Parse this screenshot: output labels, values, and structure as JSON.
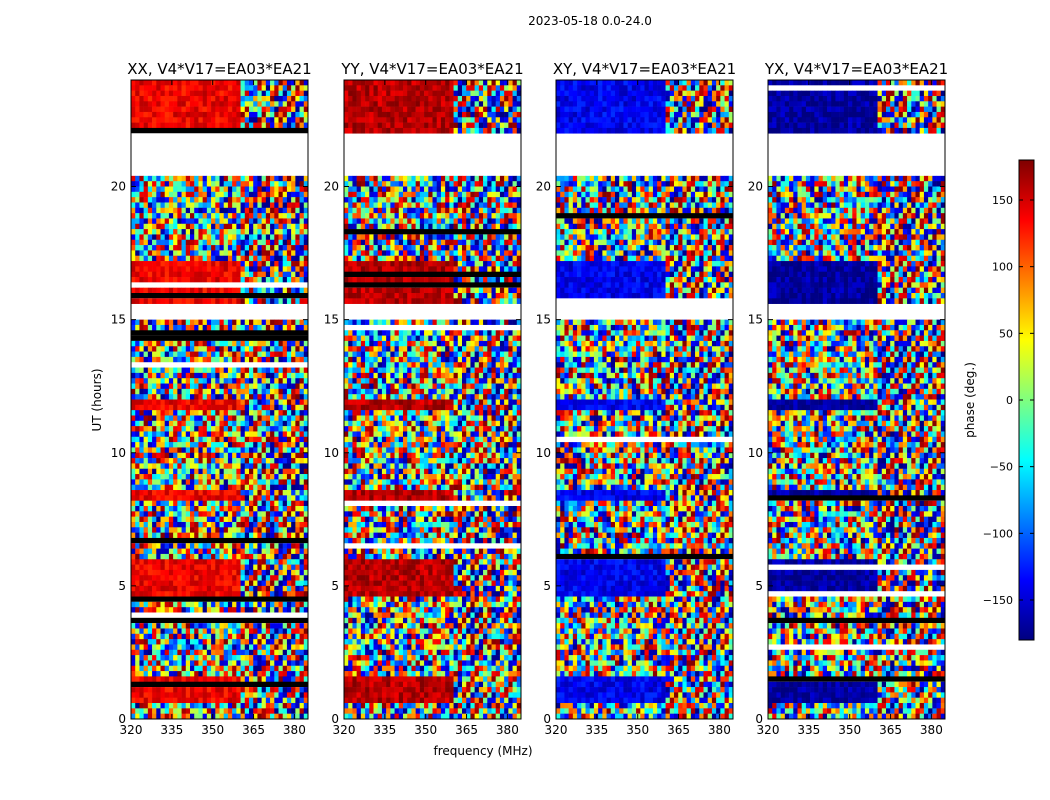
{
  "suptitle": "2023-05-18 0.0-24.0",
  "chart_data": {
    "type": "heatmap",
    "xlabel": "frequency (MHz)",
    "ylabel": "UT (hours)",
    "xlim": [
      320,
      385
    ],
    "ylim": [
      0,
      24
    ],
    "x_ticks": [
      320,
      335,
      350,
      365,
      380
    ],
    "y_ticks": [
      0,
      5,
      10,
      15,
      20
    ],
    "panels": [
      {
        "title": "XX, V4*V17=EA03*EA21",
        "pol": "XX",
        "median_phase_deg": 140
      },
      {
        "title": "YY, V4*V17=EA03*EA21",
        "pol": "YY",
        "median_phase_deg": 160
      },
      {
        "title": "XY, V4*V17=EA03*EA21",
        "pol": "XY",
        "median_phase_deg": -140
      },
      {
        "title": "YX, V4*V17=EA03*EA21",
        "pol": "YX",
        "median_phase_deg": -170
      }
    ],
    "gaps_ut_hours": [
      [
        20.5,
        22.0
      ],
      [
        15.0,
        15.5
      ]
    ],
    "colorbar": {
      "label": "phase (deg.)",
      "range": [
        -180,
        180
      ],
      "ticks": [
        150,
        100,
        50,
        0,
        -50,
        -100,
        -150
      ],
      "tick_labels": [
        "150",
        "100",
        "50",
        "0",
        "−50",
        "−100",
        "−150"
      ],
      "colormap": "jet"
    }
  }
}
